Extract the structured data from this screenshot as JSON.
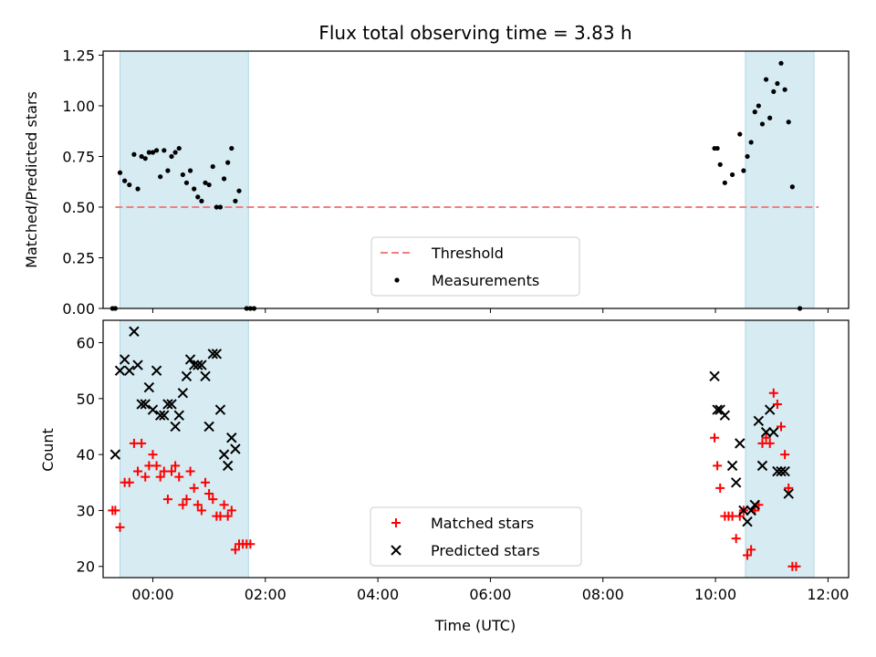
{
  "colors": {
    "shade": "#add8e6",
    "threshold": "#f08080",
    "measurement": "#000000",
    "matched": "#ff0000",
    "predicted": "#000000"
  },
  "chart_data": [
    {
      "type": "scatter",
      "title": "Flux total observing time = 3.83 h",
      "xlabel": "",
      "ylabel": "Matched/Predicted stars",
      "xlim": [
        "2024-01-01T23:07",
        "2024-01-02T12:22"
      ],
      "ylim": [
        0,
        1.27
      ],
      "yticks": [
        {
          "v": 0,
          "label": "0.00"
        },
        {
          "v": 0.25,
          "label": "0.25"
        },
        {
          "v": 0.5,
          "label": "0.50"
        },
        {
          "v": 0.75,
          "label": "0.75"
        },
        {
          "v": 1.0,
          "label": "1.00"
        },
        {
          "v": 1.25,
          "label": "1.25"
        }
      ],
      "shaded_intervals": [
        {
          "start": "2024-01-01T23:25",
          "end": "2024-01-02T01:42"
        },
        {
          "start": "2024-01-02T10:32",
          "end": "2024-01-02T11:45"
        }
      ],
      "threshold": {
        "name": "Threshold",
        "value": 0.5,
        "x": [
          "2024-01-01T23:20",
          "2024-01-02T11:50"
        ]
      },
      "legend": {
        "position": "lower center",
        "entries": [
          "Threshold",
          "Measurements"
        ]
      },
      "series": [
        {
          "name": "Measurements",
          "points": [
            [
              "2024-01-01T23:17",
              0.0
            ],
            [
              "2024-01-01T23:20",
              0.0
            ],
            [
              "2024-01-01T23:25",
              0.67
            ],
            [
              "2024-01-01T23:30",
              0.63
            ],
            [
              "2024-01-01T23:35",
              0.61
            ],
            [
              "2024-01-01T23:40",
              0.76
            ],
            [
              "2024-01-01T23:44",
              0.59
            ],
            [
              "2024-01-01T23:48",
              0.75
            ],
            [
              "2024-01-01T23:52",
              0.74
            ],
            [
              "2024-01-01T23:56",
              0.77
            ],
            [
              "2024-01-02T00:00",
              0.77
            ],
            [
              "2024-01-02T00:04",
              0.78
            ],
            [
              "2024-01-02T00:08",
              0.65
            ],
            [
              "2024-01-02T00:12",
              0.78
            ],
            [
              "2024-01-02T00:16",
              0.68
            ],
            [
              "2024-01-02T00:20",
              0.75
            ],
            [
              "2024-01-02T00:24",
              0.77
            ],
            [
              "2024-01-02T00:28",
              0.79
            ],
            [
              "2024-01-02T00:32",
              0.66
            ],
            [
              "2024-01-02T00:36",
              0.62
            ],
            [
              "2024-01-02T00:40",
              0.68
            ],
            [
              "2024-01-02T00:44",
              0.59
            ],
            [
              "2024-01-02T00:48",
              0.55
            ],
            [
              "2024-01-02T00:52",
              0.53
            ],
            [
              "2024-01-02T00:56",
              0.62
            ],
            [
              "2024-01-02T01:00",
              0.61
            ],
            [
              "2024-01-02T01:04",
              0.7
            ],
            [
              "2024-01-02T01:08",
              0.5
            ],
            [
              "2024-01-02T01:12",
              0.5
            ],
            [
              "2024-01-02T01:16",
              0.64
            ],
            [
              "2024-01-02T01:20",
              0.72
            ],
            [
              "2024-01-02T01:24",
              0.79
            ],
            [
              "2024-01-02T01:28",
              0.53
            ],
            [
              "2024-01-02T01:32",
              0.58
            ],
            [
              "2024-01-02T01:40",
              0.0
            ],
            [
              "2024-01-02T01:44",
              0.0
            ],
            [
              "2024-01-02T01:48",
              0.0
            ],
            [
              "2024-01-02T09:59",
              0.79
            ],
            [
              "2024-01-02T10:02",
              0.79
            ],
            [
              "2024-01-02T10:05",
              0.71
            ],
            [
              "2024-01-02T10:10",
              0.62
            ],
            [
              "2024-01-02T10:18",
              0.66
            ],
            [
              "2024-01-02T10:26",
              0.86
            ],
            [
              "2024-01-02T10:30",
              0.68
            ],
            [
              "2024-01-02T10:34",
              0.75
            ],
            [
              "2024-01-02T10:38",
              0.82
            ],
            [
              "2024-01-02T10:42",
              0.97
            ],
            [
              "2024-01-02T10:46",
              1.0
            ],
            [
              "2024-01-02T10:50",
              0.91
            ],
            [
              "2024-01-02T10:54",
              1.13
            ],
            [
              "2024-01-02T10:58",
              0.94
            ],
            [
              "2024-01-02T11:02",
              1.07
            ],
            [
              "2024-01-02T11:06",
              1.11
            ],
            [
              "2024-01-02T11:10",
              1.21
            ],
            [
              "2024-01-02T11:14",
              1.08
            ],
            [
              "2024-01-02T11:18",
              0.92
            ],
            [
              "2024-01-02T11:22",
              0.6
            ],
            [
              "2024-01-02T11:30",
              0.0
            ]
          ]
        }
      ]
    },
    {
      "type": "scatter",
      "title": "",
      "xlabel": "Time (UTC)",
      "ylabel": "Count",
      "xlim": [
        "2024-01-01T23:07",
        "2024-01-02T12:22"
      ],
      "ylim": [
        18,
        64
      ],
      "yticks": [
        {
          "v": 20,
          "label": "20"
        },
        {
          "v": 30,
          "label": "30"
        },
        {
          "v": 40,
          "label": "40"
        },
        {
          "v": 50,
          "label": "50"
        },
        {
          "v": 60,
          "label": "60"
        }
      ],
      "xticks": [
        {
          "v": "2024-01-02T00:00",
          "label": "00:00"
        },
        {
          "v": "2024-01-02T02:00",
          "label": "02:00"
        },
        {
          "v": "2024-01-02T04:00",
          "label": "04:00"
        },
        {
          "v": "2024-01-02T06:00",
          "label": "06:00"
        },
        {
          "v": "2024-01-02T08:00",
          "label": "08:00"
        },
        {
          "v": "2024-01-02T10:00",
          "label": "10:00"
        },
        {
          "v": "2024-01-02T12:00",
          "label": "12:00"
        }
      ],
      "shaded_intervals": [
        {
          "start": "2024-01-01T23:25",
          "end": "2024-01-02T01:42"
        },
        {
          "start": "2024-01-02T10:32",
          "end": "2024-01-02T11:45"
        }
      ],
      "legend": {
        "position": "lower center",
        "entries": [
          "Matched stars",
          "Predicted stars"
        ]
      },
      "series": [
        {
          "name": "Matched stars",
          "marker": "+",
          "points": [
            [
              "2024-01-01T23:17",
              30
            ],
            [
              "2024-01-01T23:20",
              30
            ],
            [
              "2024-01-01T23:25",
              27
            ],
            [
              "2024-01-01T23:30",
              35
            ],
            [
              "2024-01-01T23:35",
              35
            ],
            [
              "2024-01-01T23:40",
              42
            ],
            [
              "2024-01-01T23:44",
              37
            ],
            [
              "2024-01-01T23:48",
              42
            ],
            [
              "2024-01-01T23:52",
              36
            ],
            [
              "2024-01-01T23:56",
              38
            ],
            [
              "2024-01-02T00:00",
              40
            ],
            [
              "2024-01-02T00:04",
              38
            ],
            [
              "2024-01-02T00:08",
              36
            ],
            [
              "2024-01-02T00:12",
              37
            ],
            [
              "2024-01-02T00:16",
              32
            ],
            [
              "2024-01-02T00:20",
              37
            ],
            [
              "2024-01-02T00:24",
              38
            ],
            [
              "2024-01-02T00:28",
              36
            ],
            [
              "2024-01-02T00:32",
              31
            ],
            [
              "2024-01-02T00:36",
              32
            ],
            [
              "2024-01-02T00:40",
              37
            ],
            [
              "2024-01-02T00:44",
              34
            ],
            [
              "2024-01-02T00:48",
              31
            ],
            [
              "2024-01-02T00:52",
              30
            ],
            [
              "2024-01-02T00:56",
              35
            ],
            [
              "2024-01-02T01:00",
              33
            ],
            [
              "2024-01-02T01:04",
              32
            ],
            [
              "2024-01-02T01:08",
              29
            ],
            [
              "2024-01-02T01:12",
              29
            ],
            [
              "2024-01-02T01:16",
              31
            ],
            [
              "2024-01-02T01:20",
              29
            ],
            [
              "2024-01-02T01:24",
              30
            ],
            [
              "2024-01-02T01:28",
              23
            ],
            [
              "2024-01-02T01:32",
              24
            ],
            [
              "2024-01-02T01:36",
              24
            ],
            [
              "2024-01-02T01:40",
              24
            ],
            [
              "2024-01-02T01:44",
              24
            ],
            [
              "2024-01-02T09:59",
              43
            ],
            [
              "2024-01-02T10:02",
              38
            ],
            [
              "2024-01-02T10:05",
              34
            ],
            [
              "2024-01-02T10:10",
              29
            ],
            [
              "2024-01-02T10:14",
              29
            ],
            [
              "2024-01-02T10:18",
              29
            ],
            [
              "2024-01-02T10:22",
              25
            ],
            [
              "2024-01-02T10:26",
              29
            ],
            [
              "2024-01-02T10:30",
              30
            ],
            [
              "2024-01-02T10:34",
              22
            ],
            [
              "2024-01-02T10:38",
              23
            ],
            [
              "2024-01-02T10:42",
              30
            ],
            [
              "2024-01-02T10:46",
              31
            ],
            [
              "2024-01-02T10:50",
              42
            ],
            [
              "2024-01-02T10:54",
              43
            ],
            [
              "2024-01-02T10:58",
              42
            ],
            [
              "2024-01-02T11:02",
              51
            ],
            [
              "2024-01-02T11:06",
              49
            ],
            [
              "2024-01-02T11:10",
              45
            ],
            [
              "2024-01-02T11:14",
              40
            ],
            [
              "2024-01-02T11:18",
              34
            ],
            [
              "2024-01-02T11:22",
              20
            ],
            [
              "2024-01-02T11:26",
              20
            ]
          ]
        },
        {
          "name": "Predicted stars",
          "marker": "x",
          "points": [
            [
              "2024-01-01T23:20",
              40
            ],
            [
              "2024-01-01T23:25",
              55
            ],
            [
              "2024-01-01T23:30",
              57
            ],
            [
              "2024-01-01T23:35",
              55
            ],
            [
              "2024-01-01T23:40",
              62
            ],
            [
              "2024-01-01T23:44",
              56
            ],
            [
              "2024-01-01T23:48",
              49
            ],
            [
              "2024-01-01T23:52",
              49
            ],
            [
              "2024-01-01T23:56",
              52
            ],
            [
              "2024-01-02T00:00",
              48
            ],
            [
              "2024-01-02T00:04",
              55
            ],
            [
              "2024-01-02T00:08",
              47
            ],
            [
              "2024-01-02T00:12",
              47
            ],
            [
              "2024-01-02T00:16",
              49
            ],
            [
              "2024-01-02T00:20",
              49
            ],
            [
              "2024-01-02T00:24",
              45
            ],
            [
              "2024-01-02T00:28",
              47
            ],
            [
              "2024-01-02T00:32",
              51
            ],
            [
              "2024-01-02T00:36",
              54
            ],
            [
              "2024-01-02T00:40",
              57
            ],
            [
              "2024-01-02T00:44",
              56
            ],
            [
              "2024-01-02T00:48",
              56
            ],
            [
              "2024-01-02T00:52",
              56
            ],
            [
              "2024-01-02T00:56",
              54
            ],
            [
              "2024-01-02T01:00",
              45
            ],
            [
              "2024-01-02T01:04",
              58
            ],
            [
              "2024-01-02T01:08",
              58
            ],
            [
              "2024-01-02T01:12",
              48
            ],
            [
              "2024-01-02T01:16",
              40
            ],
            [
              "2024-01-02T01:20",
              38
            ],
            [
              "2024-01-02T01:24",
              43
            ],
            [
              "2024-01-02T01:28",
              41
            ],
            [
              "2024-01-02T09:59",
              54
            ],
            [
              "2024-01-02T10:02",
              48
            ],
            [
              "2024-01-02T10:05",
              48
            ],
            [
              "2024-01-02T10:10",
              47
            ],
            [
              "2024-01-02T10:18",
              38
            ],
            [
              "2024-01-02T10:22",
              35
            ],
            [
              "2024-01-02T10:26",
              42
            ],
            [
              "2024-01-02T10:30",
              30
            ],
            [
              "2024-01-02T10:34",
              28
            ],
            [
              "2024-01-02T10:38",
              30
            ],
            [
              "2024-01-02T10:42",
              31
            ],
            [
              "2024-01-02T10:46",
              46
            ],
            [
              "2024-01-02T10:50",
              38
            ],
            [
              "2024-01-02T10:54",
              44
            ],
            [
              "2024-01-02T10:58",
              48
            ],
            [
              "2024-01-02T11:02",
              44
            ],
            [
              "2024-01-02T11:06",
              37
            ],
            [
              "2024-01-02T11:10",
              37
            ],
            [
              "2024-01-02T11:14",
              37
            ],
            [
              "2024-01-02T11:18",
              33
            ]
          ]
        }
      ]
    }
  ]
}
